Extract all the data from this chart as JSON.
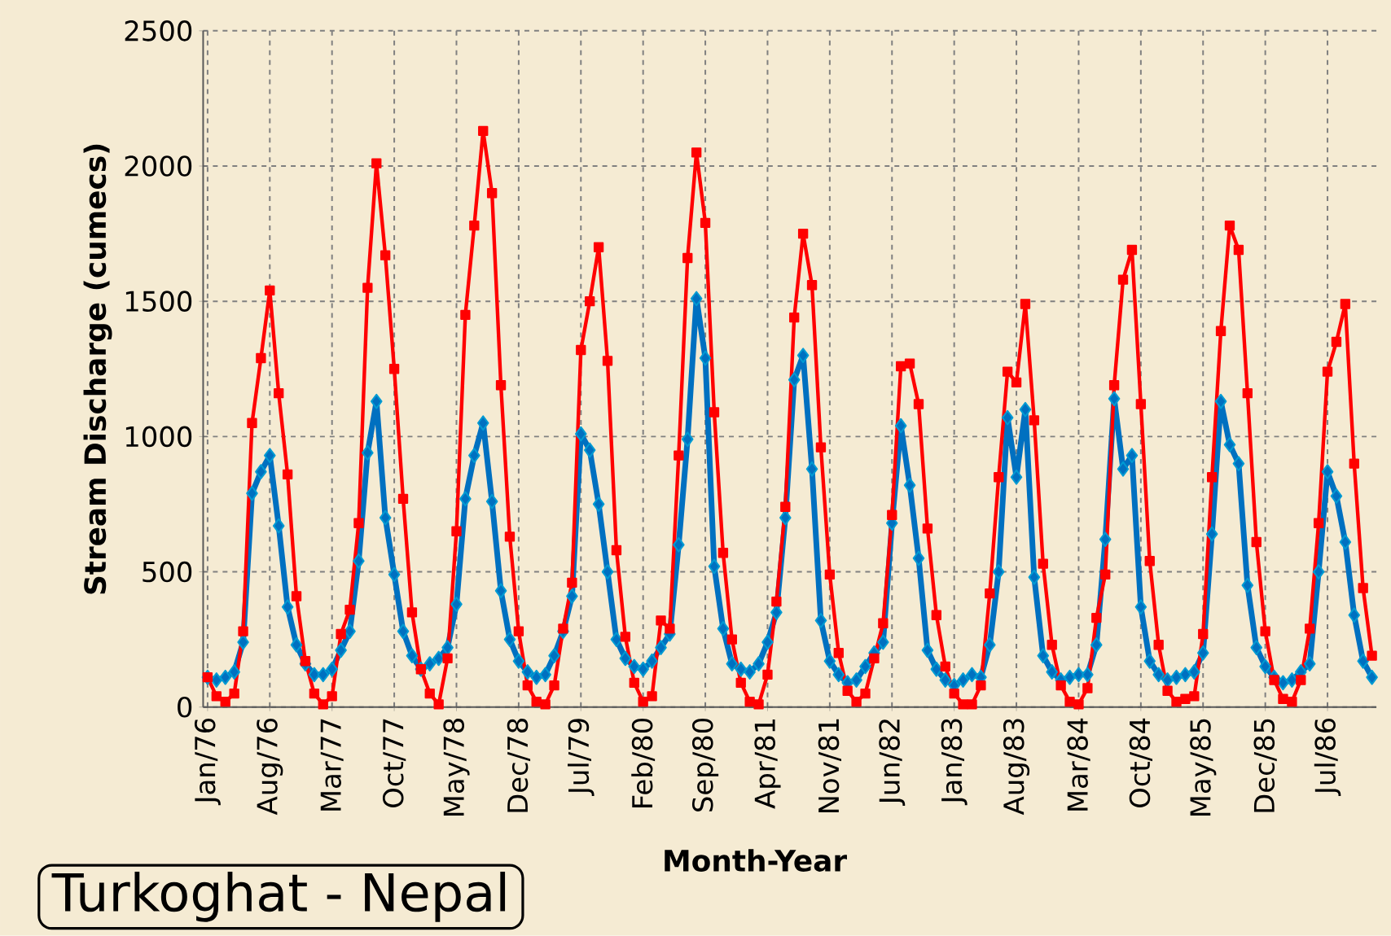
{
  "chart_data": {
    "type": "line",
    "xlabel": "Month-Year",
    "ylabel": "Stream Discharge (cumecs)",
    "annotations": [
      "Turkoghat - Nepal"
    ],
    "categories": [
      "Jan/76",
      null,
      null,
      null,
      null,
      null,
      null,
      "Aug/76",
      null,
      null,
      null,
      null,
      null,
      null,
      "Mar/77",
      null,
      null,
      null,
      null,
      null,
      null,
      "Oct/77",
      null,
      null,
      null,
      null,
      null,
      null,
      "May/78",
      null,
      null,
      null,
      null,
      null,
      null,
      "Dec/78",
      null,
      null,
      null,
      null,
      null,
      null,
      "Jul/79",
      null,
      null,
      null,
      null,
      null,
      null,
      "Feb/80",
      null,
      null,
      null,
      null,
      null,
      null,
      "Sep/80",
      null,
      null,
      null,
      null,
      null,
      null,
      "Apr/81",
      null,
      null,
      null,
      null,
      null,
      null,
      "Nov/81",
      null,
      null,
      null,
      null,
      null,
      null,
      "Jun/82",
      null,
      null,
      null,
      null,
      null,
      null,
      "Jan/83",
      null,
      null,
      null,
      null,
      null,
      null,
      "Aug/83",
      null,
      null,
      null,
      null,
      null,
      null,
      "Mar/84",
      null,
      null,
      null,
      null,
      null,
      null,
      "Oct/84",
      null,
      null,
      null,
      null,
      null,
      null,
      "May/85",
      null,
      null,
      null,
      null,
      null,
      null,
      "Dec/85",
      null,
      null,
      null,
      null,
      null,
      null,
      "Jul/86",
      null,
      null,
      null,
      null,
      null
    ],
    "series": [
      {
        "color": "#0070c0",
        "marker": "diamond",
        "values": [
          110,
          100,
          110,
          130,
          240,
          790,
          870,
          930,
          670,
          370,
          230,
          160,
          120,
          120,
          140,
          210,
          280,
          540,
          940,
          1130,
          700,
          490,
          280,
          190,
          140,
          160,
          180,
          220,
          380,
          770,
          930,
          1050,
          760,
          430,
          250,
          170,
          130,
          110,
          120,
          190,
          280,
          410,
          1010,
          950,
          750,
          500,
          250,
          180,
          150,
          140,
          170,
          220,
          270,
          600,
          990,
          1510,
          1290,
          520,
          290,
          160,
          140,
          130,
          160,
          240,
          350,
          700,
          1210,
          1300,
          880,
          320,
          170,
          120,
          90,
          100,
          150,
          200,
          240,
          680,
          1040,
          820,
          550,
          210,
          140,
          100,
          80,
          100,
          120,
          110,
          230,
          500,
          1070,
          850,
          1100,
          480,
          190,
          130,
          100,
          110,
          120,
          120,
          230,
          620,
          1140,
          880,
          930,
          370,
          170,
          120,
          100,
          110,
          120,
          130,
          200,
          640,
          1130,
          970,
          900,
          450,
          220,
          150,
          110,
          90,
          100,
          130,
          160,
          500,
          870,
          780,
          610,
          340,
          170,
          110
        ]
      },
      {
        "color": "#ff0000",
        "marker": "square",
        "values": [
          110,
          40,
          20,
          50,
          280,
          1050,
          1290,
          1540,
          1160,
          860,
          410,
          170,
          50,
          10,
          40,
          270,
          360,
          680,
          1550,
          2010,
          1670,
          1250,
          770,
          350,
          140,
          50,
          10,
          180,
          650,
          1450,
          1780,
          2130,
          1900,
          1190,
          630,
          280,
          80,
          20,
          10,
          80,
          290,
          460,
          1320,
          1500,
          1700,
          1280,
          580,
          260,
          90,
          20,
          40,
          320,
          290,
          930,
          1660,
          2050,
          1790,
          1090,
          570,
          250,
          90,
          20,
          10,
          120,
          390,
          740,
          1440,
          1750,
          1560,
          960,
          490,
          200,
          60,
          20,
          50,
          180,
          310,
          710,
          1260,
          1270,
          1120,
          660,
          340,
          150,
          50,
          10,
          10,
          80,
          420,
          850,
          1240,
          1200,
          1490,
          1060,
          530,
          230,
          80,
          20,
          10,
          70,
          330,
          490,
          1190,
          1580,
          1690,
          1120,
          540,
          230,
          60,
          20,
          30,
          40,
          270,
          850,
          1390,
          1780,
          1690,
          1160,
          610,
          280,
          100,
          30,
          20,
          100,
          290,
          680,
          1240,
          1350,
          1490,
          900,
          440,
          190
        ]
      }
    ],
    "ylim": [
      0,
      2500
    ],
    "yticks": [
      0,
      500,
      1000,
      1500,
      2000,
      2500
    ],
    "grid": true
  }
}
